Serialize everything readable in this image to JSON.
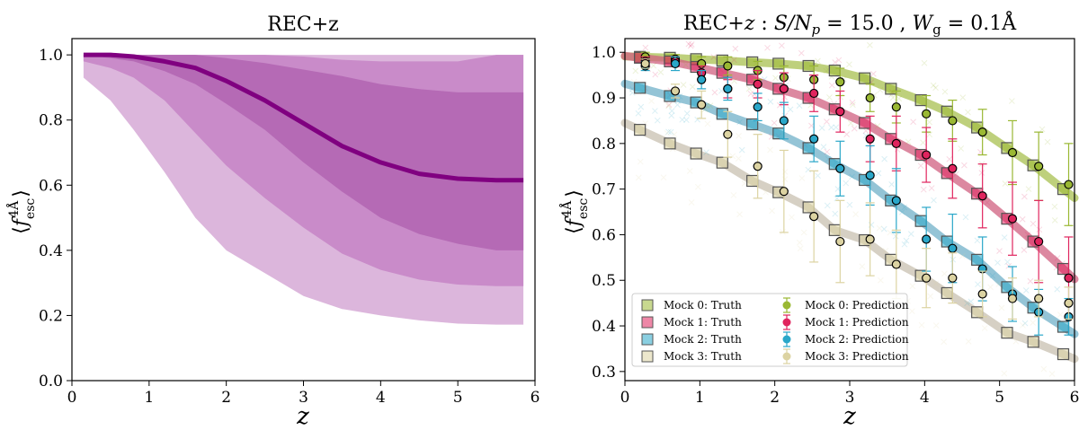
{
  "chart_data": [
    {
      "type": "area",
      "title": "REC+z",
      "xlabel": "z",
      "ylabel": "⟨f_esc^4Å⟩",
      "xlim": [
        0,
        6
      ],
      "ylim": [
        0,
        1.05
      ],
      "xticks": [
        "0",
        "1",
        "2",
        "3",
        "4",
        "5",
        "6"
      ],
      "yticks": [
        "0.0",
        "0.2",
        "0.4",
        "0.6",
        "0.8",
        "1.0"
      ],
      "color": "#800080",
      "x": [
        0.15,
        0.5,
        0.8,
        1.2,
        1.6,
        2.0,
        2.5,
        3.0,
        3.5,
        4.0,
        4.5,
        5.0,
        5.5,
        5.85
      ],
      "median": [
        1.0,
        1.0,
        0.995,
        0.98,
        0.96,
        0.92,
        0.86,
        0.79,
        0.72,
        0.67,
        0.635,
        0.62,
        0.615,
        0.615
      ],
      "bands": [
        {
          "name": "outer",
          "lower": [
            0.93,
            0.86,
            0.77,
            0.64,
            0.5,
            0.4,
            0.33,
            0.26,
            0.22,
            0.2,
            0.185,
            0.175,
            0.172,
            0.172
          ],
          "upper": [
            1.0,
            1.0,
            1.0,
            1.0,
            1.0,
            1.0,
            1.0,
            1.0,
            1.0,
            1.0,
            1.0,
            1.0,
            1.0,
            1.0
          ]
        },
        {
          "name": "middle",
          "lower": [
            0.98,
            0.96,
            0.93,
            0.86,
            0.76,
            0.66,
            0.56,
            0.47,
            0.39,
            0.34,
            0.31,
            0.295,
            0.29,
            0.29
          ],
          "upper": [
            1.0,
            1.0,
            1.0,
            1.0,
            1.0,
            1.0,
            1.0,
            0.995,
            0.985,
            0.98,
            0.98,
            0.98,
            1.0,
            1.0
          ]
        },
        {
          "name": "inner",
          "lower": [
            1.0,
            0.99,
            0.98,
            0.95,
            0.91,
            0.85,
            0.77,
            0.67,
            0.58,
            0.5,
            0.45,
            0.42,
            0.4,
            0.4
          ],
          "upper": [
            1.0,
            1.0,
            1.0,
            1.0,
            1.0,
            0.99,
            0.975,
            0.955,
            0.935,
            0.91,
            0.895,
            0.885,
            0.885,
            0.885
          ]
        }
      ]
    },
    {
      "type": "scatter",
      "title_parts": {
        "a": "REC+",
        "b": "z",
        "c": " : ",
        "d": "S/N",
        "e": "p",
        "f": " = 15.0 , ",
        "g": "W",
        "h": "g",
        "i": " = 0.1Å"
      },
      "xlabel": "z",
      "ylabel": "⟨f_esc^4Å⟩",
      "xlim": [
        0,
        6
      ],
      "ylim": [
        0.28,
        1.03
      ],
      "xticks": [
        "0",
        "1",
        "2",
        "3",
        "4",
        "5",
        "6"
      ],
      "yticks": [
        "0.3",
        "0.4",
        "0.5",
        "0.6",
        "0.7",
        "0.8",
        "0.9",
        "1.0"
      ],
      "z_points": [
        0.2,
        0.6,
        0.95,
        1.3,
        1.7,
        2.05,
        2.45,
        2.8,
        3.2,
        3.55,
        3.95,
        4.3,
        4.7,
        5.1,
        5.45,
        5.85
      ],
      "series": [
        {
          "name": "Mock 0",
          "truth_label": "Mock 0: Truth",
          "pred_label": "Mock 0: Prediction",
          "color": "#9ab833",
          "band_color": "#a8c050",
          "truth": [
            0.99,
            0.988,
            0.985,
            0.982,
            0.978,
            0.975,
            0.97,
            0.96,
            0.943,
            0.92,
            0.895,
            0.87,
            0.835,
            0.79,
            0.752,
            0.7
          ],
          "pred": [
            0.99,
            0.985,
            0.975,
            0.97,
            0.96,
            0.945,
            0.94,
            0.935,
            0.9,
            0.88,
            0.865,
            0.85,
            0.825,
            0.78,
            0.75,
            0.71
          ],
          "err": [
            0.01,
            0.01,
            0.015,
            0.02,
            0.02,
            0.025,
            0.03,
            0.03,
            0.03,
            0.035,
            0.04,
            0.045,
            0.05,
            0.07,
            0.075,
            0.09
          ]
        },
        {
          "name": "Mock 1",
          "truth_label": "Mock 1: Truth",
          "pred_label": "Mock 1: Prediction",
          "color": "#e0245e",
          "band_color": "#d06080",
          "truth": [
            0.988,
            0.98,
            0.968,
            0.955,
            0.94,
            0.92,
            0.9,
            0.875,
            0.845,
            0.81,
            0.775,
            0.735,
            0.69,
            0.635,
            0.585,
            0.525
          ],
          "pred": [
            0.98,
            0.98,
            0.955,
            0.92,
            0.93,
            0.92,
            0.91,
            0.87,
            0.81,
            0.8,
            0.775,
            0.745,
            0.685,
            0.635,
            0.585,
            0.505
          ],
          "err": [
            0.01,
            0.01,
            0.015,
            0.02,
            0.03,
            0.035,
            0.04,
            0.045,
            0.05,
            0.06,
            0.06,
            0.065,
            0.07,
            0.08,
            0.09,
            0.09
          ]
        },
        {
          "name": "Mock 2",
          "truth_label": "Mock 2: Truth",
          "pred_label": "Mock 2: Prediction",
          "color": "#2aa7c9",
          "band_color": "#70b0c8",
          "truth": [
            0.922,
            0.904,
            0.89,
            0.865,
            0.842,
            0.822,
            0.79,
            0.755,
            0.72,
            0.675,
            0.63,
            0.585,
            0.545,
            0.485,
            0.44,
            0.398
          ],
          "pred": [
            0.97,
            0.975,
            0.94,
            0.92,
            0.88,
            0.85,
            0.81,
            0.745,
            0.73,
            0.675,
            0.59,
            0.57,
            0.525,
            0.47,
            0.43,
            0.42
          ],
          "err": [
            0.01,
            0.015,
            0.02,
            0.025,
            0.03,
            0.04,
            0.05,
            0.06,
            0.065,
            0.07,
            0.07,
            0.075,
            0.07,
            0.06,
            0.05,
            0.04
          ]
        },
        {
          "name": "Mock 3",
          "truth_label": "Mock 3: Truth",
          "pred_label": "Mock 3: Prediction",
          "color": "#dcd3a2",
          "band_color": "#c8c0b0",
          "truth": [
            0.83,
            0.8,
            0.778,
            0.758,
            0.718,
            0.693,
            0.66,
            0.61,
            0.588,
            0.545,
            0.51,
            0.472,
            0.43,
            0.385,
            0.365,
            0.338
          ],
          "pred": [
            0.975,
            0.915,
            0.885,
            0.82,
            0.75,
            0.695,
            0.64,
            0.585,
            0.59,
            0.535,
            0.505,
            0.505,
            0.47,
            0.46,
            0.46,
            0.45
          ],
          "err": [
            0.01,
            0.015,
            0.03,
            0.05,
            0.07,
            0.09,
            0.1,
            0.09,
            0.08,
            0.075,
            0.065,
            0.055,
            0.05,
            0.045,
            0.04,
            0.035
          ]
        }
      ]
    }
  ]
}
